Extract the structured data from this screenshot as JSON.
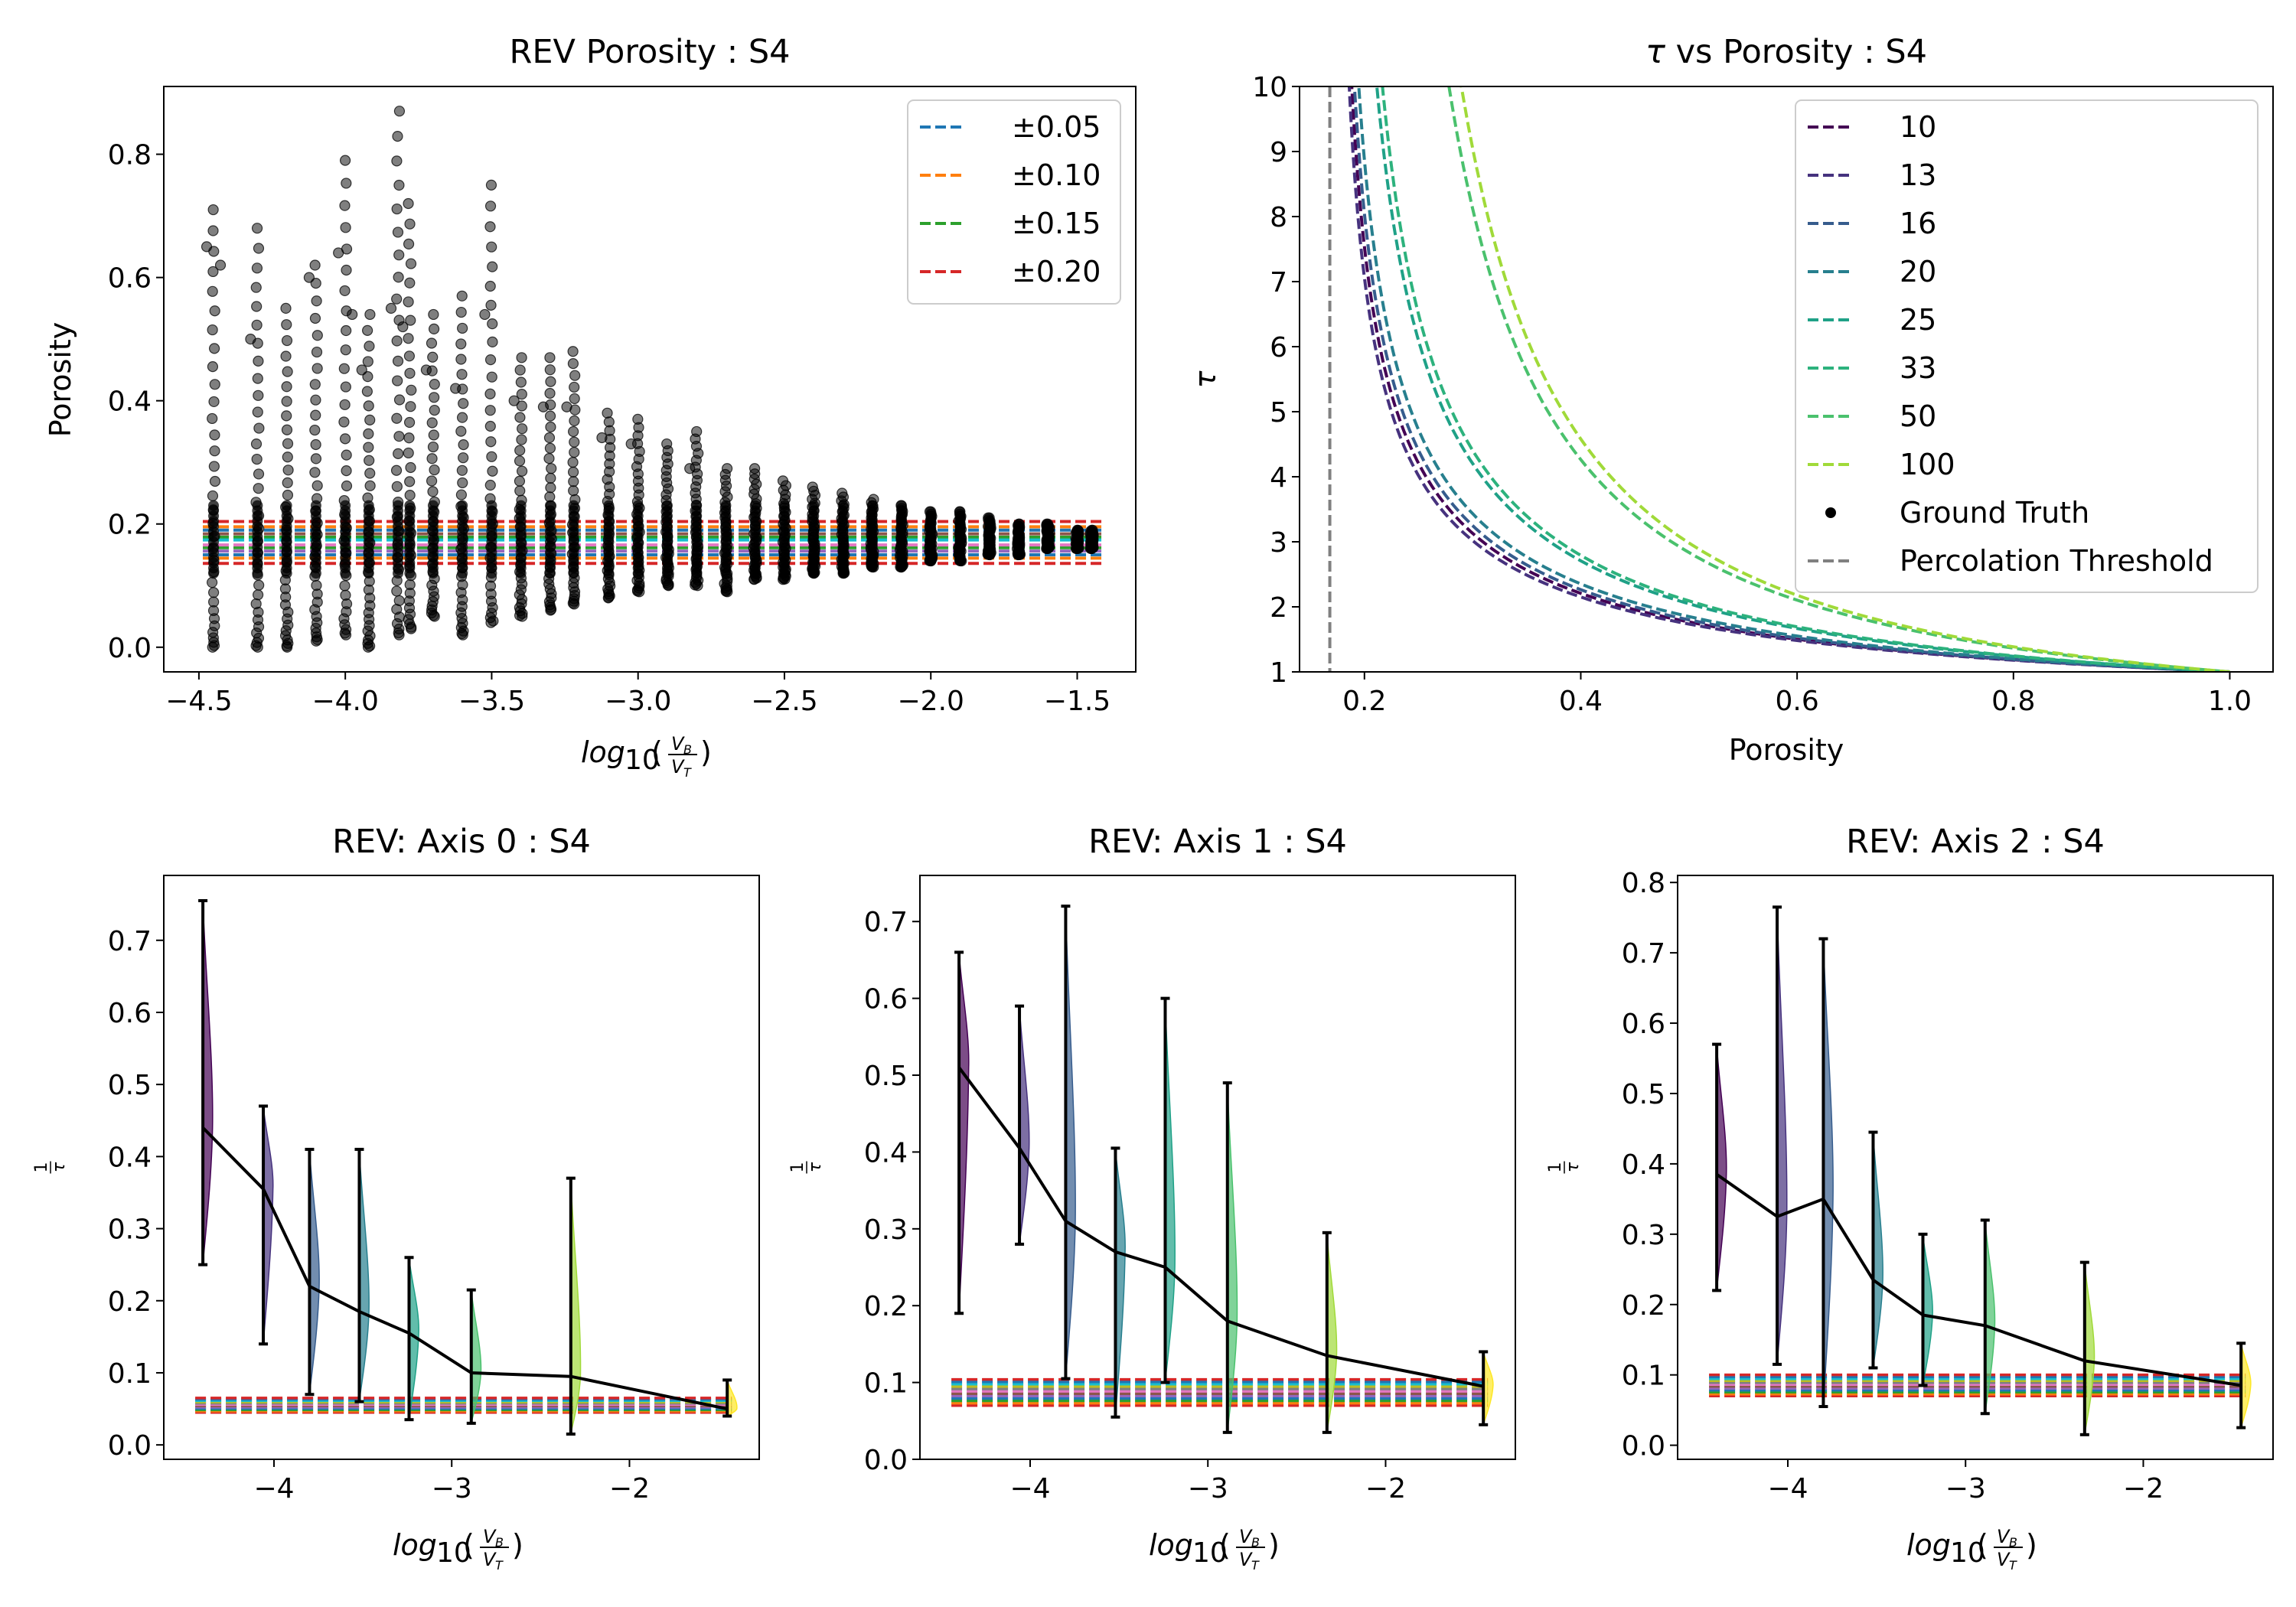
{
  "chart_data": [
    {
      "id": "p0",
      "type": "scatter",
      "title": "REV Porosity : S4",
      "ylabel": "Porosity",
      "xlabel_parts": {
        "base": "log",
        "sub": "10",
        "num": "V",
        "num_sub": "B",
        "den": "V",
        "den_sub": "T"
      },
      "xlim": [
        -4.62,
        -1.3
      ],
      "ylim": [
        -0.04,
        0.91
      ],
      "xticks": [
        {
          "v": -4.5,
          "label": "−4.5"
        },
        {
          "v": -4.0,
          "label": "−4.0"
        },
        {
          "v": -3.5,
          "label": "−3.5"
        },
        {
          "v": -3.0,
          "label": "−3.0"
        },
        {
          "v": -2.5,
          "label": "−2.5"
        },
        {
          "v": -2.0,
          "label": "−2.0"
        },
        {
          "v": -1.5,
          "label": "−1.5"
        }
      ],
      "yticks": [
        {
          "v": 0.0,
          "label": "0.0"
        },
        {
          "v": 0.2,
          "label": "0.2"
        },
        {
          "v": 0.4,
          "label": "0.4"
        },
        {
          "v": 0.6,
          "label": "0.6"
        },
        {
          "v": 0.8,
          "label": "0.8"
        }
      ],
      "scatter_columns": [
        {
          "x": -4.45,
          "min": 0.0,
          "max": 0.71,
          "outliers": [
            0.65,
            0.62
          ]
        },
        {
          "x": -4.3,
          "min": 0.0,
          "max": 0.68,
          "outliers": [
            0.5
          ]
        },
        {
          "x": -4.2,
          "min": 0.0,
          "max": 0.55,
          "outliers": []
        },
        {
          "x": -4.1,
          "min": 0.01,
          "max": 0.62,
          "outliers": [
            0.6
          ]
        },
        {
          "x": -4.0,
          "min": 0.02,
          "max": 0.79,
          "outliers": [
            0.64,
            0.54
          ]
        },
        {
          "x": -3.92,
          "min": 0.0,
          "max": 0.54,
          "outliers": [
            0.45
          ]
        },
        {
          "x": -3.82,
          "min": 0.02,
          "max": 0.87,
          "outliers": [
            0.55
          ]
        },
        {
          "x": -3.78,
          "min": 0.03,
          "max": 0.72,
          "outliers": [
            0.52
          ]
        },
        {
          "x": -3.7,
          "min": 0.05,
          "max": 0.54,
          "outliers": [
            0.45
          ]
        },
        {
          "x": -3.6,
          "min": 0.02,
          "max": 0.57,
          "outliers": [
            0.42
          ]
        },
        {
          "x": -3.5,
          "min": 0.04,
          "max": 0.75,
          "outliers": [
            0.54
          ]
        },
        {
          "x": -3.4,
          "min": 0.05,
          "max": 0.47,
          "outliers": [
            0.4
          ]
        },
        {
          "x": -3.3,
          "min": 0.06,
          "max": 0.47,
          "outliers": [
            0.39
          ]
        },
        {
          "x": -3.22,
          "min": 0.07,
          "max": 0.48,
          "outliers": [
            0.39
          ]
        },
        {
          "x": -3.1,
          "min": 0.08,
          "max": 0.38,
          "outliers": [
            0.34
          ]
        },
        {
          "x": -3.0,
          "min": 0.09,
          "max": 0.37,
          "outliers": [
            0.33
          ]
        },
        {
          "x": -2.9,
          "min": 0.1,
          "max": 0.33,
          "outliers": []
        },
        {
          "x": -2.8,
          "min": 0.1,
          "max": 0.35,
          "outliers": [
            0.29
          ]
        },
        {
          "x": -2.7,
          "min": 0.09,
          "max": 0.29,
          "outliers": []
        },
        {
          "x": -2.6,
          "min": 0.11,
          "max": 0.29,
          "outliers": []
        },
        {
          "x": -2.5,
          "min": 0.11,
          "max": 0.27,
          "outliers": []
        },
        {
          "x": -2.4,
          "min": 0.12,
          "max": 0.26,
          "outliers": []
        },
        {
          "x": -2.3,
          "min": 0.12,
          "max": 0.25,
          "outliers": []
        },
        {
          "x": -2.2,
          "min": 0.13,
          "max": 0.24,
          "outliers": []
        },
        {
          "x": -2.1,
          "min": 0.13,
          "max": 0.23,
          "outliers": []
        },
        {
          "x": -2.0,
          "min": 0.14,
          "max": 0.22,
          "outliers": []
        },
        {
          "x": -1.9,
          "min": 0.14,
          "max": 0.22,
          "outliers": []
        },
        {
          "x": -1.8,
          "min": 0.15,
          "max": 0.21,
          "outliers": []
        },
        {
          "x": -1.7,
          "min": 0.15,
          "max": 0.2,
          "outliers": []
        },
        {
          "x": -1.6,
          "min": 0.16,
          "max": 0.2,
          "outliers": []
        },
        {
          "x": -1.5,
          "min": 0.16,
          "max": 0.19,
          "outliers": []
        },
        {
          "x": -1.45,
          "min": 0.16,
          "max": 0.19,
          "outliers": []
        }
      ],
      "band_center": 0.17,
      "band_xrange": [
        -4.45,
        -1.45
      ],
      "band_lines": [
        {
          "offset": -0.02,
          "color": "#1f77b4"
        },
        {
          "offset": 0.02,
          "color": "#1f77b4"
        },
        {
          "offset": -0.0255,
          "color": "#ff7f0e"
        },
        {
          "offset": 0.0255,
          "color": "#ff7f0e"
        },
        {
          "offset": -0.0085,
          "color": "#2ca02c"
        },
        {
          "offset": 0.0085,
          "color": "#2ca02c"
        },
        {
          "offset": -0.034,
          "color": "#d62728"
        },
        {
          "offset": 0.034,
          "color": "#d62728"
        },
        {
          "offset": -0.014,
          "color": "#9467bd"
        },
        {
          "offset": 0.014,
          "color": "#8c564b"
        },
        {
          "offset": -0.004,
          "color": "#e377c2"
        },
        {
          "offset": 0.004,
          "color": "#17becf"
        }
      ],
      "legend": {
        "position": "top-right",
        "entries": [
          {
            "label": "±0.05",
            "color": "#1f77b4"
          },
          {
            "label": "±0.10",
            "color": "#ff7f0e"
          },
          {
            "label": "±0.15",
            "color": "#2ca02c"
          },
          {
            "label": "±0.20",
            "color": "#d62728"
          }
        ]
      }
    },
    {
      "id": "p1",
      "type": "line",
      "title_prefix": "τ",
      "title_rest": " vs Porosity : S4",
      "xlabel": "Porosity",
      "ylabel": "τ",
      "xlim": [
        0.14,
        1.04
      ],
      "ylim": [
        1,
        10
      ],
      "xticks": [
        {
          "v": 0.2,
          "label": "0.2"
        },
        {
          "v": 0.4,
          "label": "0.4"
        },
        {
          "v": 0.6,
          "label": "0.6"
        },
        {
          "v": 0.8,
          "label": "0.8"
        },
        {
          "v": 1.0,
          "label": "1.0"
        }
      ],
      "yticks": [
        {
          "v": 1,
          "label": "1"
        },
        {
          "v": 2,
          "label": "2"
        },
        {
          "v": 3,
          "label": "3"
        },
        {
          "v": 4,
          "label": "4"
        },
        {
          "v": 5,
          "label": "5"
        },
        {
          "v": 6,
          "label": "6"
        },
        {
          "v": 7,
          "label": "7"
        },
        {
          "v": 8,
          "label": "8"
        },
        {
          "v": 9,
          "label": "9"
        },
        {
          "v": 10,
          "label": "10"
        }
      ],
      "percolation_threshold": 0.168,
      "series": [
        {
          "name": "10",
          "color": "#440154",
          "pc": 0.168,
          "n": 0.62
        },
        {
          "name": "13",
          "color": "#46327e",
          "pc": 0.168,
          "n": 0.6
        },
        {
          "name": "16",
          "color": "#365c8d",
          "pc": 0.168,
          "n": 0.64
        },
        {
          "name": "20",
          "color": "#277f8e",
          "pc": 0.168,
          "n": 0.67
        },
        {
          "name": "25",
          "color": "#1fa187",
          "pc": 0.168,
          "n": 0.78
        },
        {
          "name": "33",
          "color": "#2db27d",
          "pc": 0.17,
          "n": 0.8
        },
        {
          "name": "50",
          "color": "#4ac16d",
          "pc": 0.17,
          "n": 1.13
        },
        {
          "name": "100",
          "color": "#a0da39",
          "pc": 0.172,
          "n": 1.18
        }
      ],
      "legend": {
        "position": "top-right",
        "ground_truth_label": "Ground Truth",
        "percolation_label": "Percolation Threshold",
        "percolation_color": "#808080"
      }
    },
    {
      "id": "p2",
      "type": "violin",
      "title": "REV: Axis 0 : S4",
      "ylabel_num": "1",
      "ylabel_den": "τ",
      "xlabel_parts": {
        "base": "log",
        "sub": "10",
        "num": "V",
        "num_sub": "B",
        "den": "V",
        "den_sub": "T"
      },
      "xlim": [
        -4.62,
        -1.27
      ],
      "ylim": [
        -0.02,
        0.79
      ],
      "xticks": [
        {
          "v": -4,
          "label": "−4"
        },
        {
          "v": -3,
          "label": "−3"
        },
        {
          "v": -2,
          "label": "−2"
        }
      ],
      "yticks": [
        {
          "v": 0.0,
          "label": "0.0"
        },
        {
          "v": 0.1,
          "label": "0.1"
        },
        {
          "v": 0.2,
          "label": "0.2"
        },
        {
          "v": 0.3,
          "label": "0.3"
        },
        {
          "v": 0.4,
          "label": "0.4"
        },
        {
          "v": 0.5,
          "label": "0.5"
        },
        {
          "v": 0.6,
          "label": "0.6"
        },
        {
          "v": 0.7,
          "label": "0.7"
        }
      ],
      "band_center": 0.055,
      "band_halfwidth": 0.01,
      "points": [
        {
          "x": -4.4,
          "min": 0.25,
          "max": 0.755,
          "mean": 0.44,
          "color": "#440154"
        },
        {
          "x": -4.06,
          "min": 0.14,
          "max": 0.47,
          "mean": 0.355,
          "color": "#46327e"
        },
        {
          "x": -3.8,
          "min": 0.07,
          "max": 0.41,
          "mean": 0.22,
          "color": "#365c8d"
        },
        {
          "x": -3.52,
          "min": 0.06,
          "max": 0.41,
          "mean": 0.185,
          "color": "#277f8e"
        },
        {
          "x": -3.24,
          "min": 0.035,
          "max": 0.26,
          "mean": 0.155,
          "color": "#1fa187"
        },
        {
          "x": -2.89,
          "min": 0.03,
          "max": 0.215,
          "mean": 0.1,
          "color": "#4ac16d"
        },
        {
          "x": -2.33,
          "min": 0.015,
          "max": 0.37,
          "mean": 0.095,
          "color": "#a0da39"
        },
        {
          "x": -1.45,
          "min": 0.04,
          "max": 0.09,
          "mean": 0.05,
          "color": "#fde725"
        }
      ]
    },
    {
      "id": "p3",
      "type": "violin",
      "title": "REV: Axis 1 : S4",
      "ylabel_num": "1",
      "ylabel_den": "τ",
      "xlabel_parts": {
        "base": "log",
        "sub": "10",
        "num": "V",
        "num_sub": "B",
        "den": "V",
        "den_sub": "T"
      },
      "xlim": [
        -4.62,
        -1.27
      ],
      "ylim": [
        0.0,
        0.76
      ],
      "xticks": [
        {
          "v": -4,
          "label": "−4"
        },
        {
          "v": -3,
          "label": "−3"
        },
        {
          "v": -2,
          "label": "−2"
        }
      ],
      "yticks": [
        {
          "v": 0.0,
          "label": "0.0"
        },
        {
          "v": 0.1,
          "label": "0.1"
        },
        {
          "v": 0.2,
          "label": "0.2"
        },
        {
          "v": 0.3,
          "label": "0.3"
        },
        {
          "v": 0.4,
          "label": "0.4"
        },
        {
          "v": 0.5,
          "label": "0.5"
        },
        {
          "v": 0.6,
          "label": "0.6"
        },
        {
          "v": 0.7,
          "label": "0.7"
        }
      ],
      "band_center": 0.087,
      "band_halfwidth": 0.017,
      "points": [
        {
          "x": -4.4,
          "min": 0.19,
          "max": 0.66,
          "mean": 0.51,
          "color": "#440154"
        },
        {
          "x": -4.06,
          "min": 0.28,
          "max": 0.59,
          "mean": 0.405,
          "color": "#46327e"
        },
        {
          "x": -3.8,
          "min": 0.105,
          "max": 0.72,
          "mean": 0.31,
          "color": "#365c8d"
        },
        {
          "x": -3.52,
          "min": 0.055,
          "max": 0.405,
          "mean": 0.27,
          "color": "#277f8e"
        },
        {
          "x": -3.24,
          "min": 0.1,
          "max": 0.6,
          "mean": 0.25,
          "color": "#1fa187"
        },
        {
          "x": -2.89,
          "min": 0.035,
          "max": 0.49,
          "mean": 0.18,
          "color": "#4ac16d"
        },
        {
          "x": -2.33,
          "min": 0.035,
          "max": 0.295,
          "mean": 0.135,
          "color": "#a0da39"
        },
        {
          "x": -1.45,
          "min": 0.045,
          "max": 0.14,
          "mean": 0.095,
          "color": "#fde725"
        }
      ]
    },
    {
      "id": "p4",
      "type": "violin",
      "title": "REV: Axis 2 : S4",
      "ylabel_num": "1",
      "ylabel_den": "τ",
      "xlabel_parts": {
        "base": "log",
        "sub": "10",
        "num": "V",
        "num_sub": "B",
        "den": "V",
        "den_sub": "T"
      },
      "xlim": [
        -4.62,
        -1.27
      ],
      "ylim": [
        -0.02,
        0.81
      ],
      "xticks": [
        {
          "v": -4,
          "label": "−4"
        },
        {
          "v": -3,
          "label": "−3"
        },
        {
          "v": -2,
          "label": "−2"
        }
      ],
      "yticks": [
        {
          "v": 0.0,
          "label": "0.0"
        },
        {
          "v": 0.1,
          "label": "0.1"
        },
        {
          "v": 0.2,
          "label": "0.2"
        },
        {
          "v": 0.3,
          "label": "0.3"
        },
        {
          "v": 0.4,
          "label": "0.4"
        },
        {
          "v": 0.5,
          "label": "0.5"
        },
        {
          "v": 0.6,
          "label": "0.6"
        },
        {
          "v": 0.7,
          "label": "0.7"
        },
        {
          "v": 0.8,
          "label": "0.8"
        }
      ],
      "band_center": 0.085,
      "band_halfwidth": 0.015,
      "points": [
        {
          "x": -4.4,
          "min": 0.22,
          "max": 0.57,
          "mean": 0.385,
          "color": "#440154"
        },
        {
          "x": -4.06,
          "min": 0.115,
          "max": 0.765,
          "mean": 0.325,
          "color": "#46327e"
        },
        {
          "x": -3.8,
          "min": 0.055,
          "max": 0.72,
          "mean": 0.35,
          "color": "#365c8d"
        },
        {
          "x": -3.52,
          "min": 0.11,
          "max": 0.445,
          "mean": 0.235,
          "color": "#277f8e"
        },
        {
          "x": -3.24,
          "min": 0.085,
          "max": 0.3,
          "mean": 0.185,
          "color": "#1fa187"
        },
        {
          "x": -2.89,
          "min": 0.045,
          "max": 0.32,
          "mean": 0.17,
          "color": "#4ac16d"
        },
        {
          "x": -2.33,
          "min": 0.015,
          "max": 0.26,
          "mean": 0.12,
          "color": "#a0da39"
        },
        {
          "x": -1.45,
          "min": 0.025,
          "max": 0.145,
          "mean": 0.085,
          "color": "#fde725"
        }
      ]
    }
  ]
}
